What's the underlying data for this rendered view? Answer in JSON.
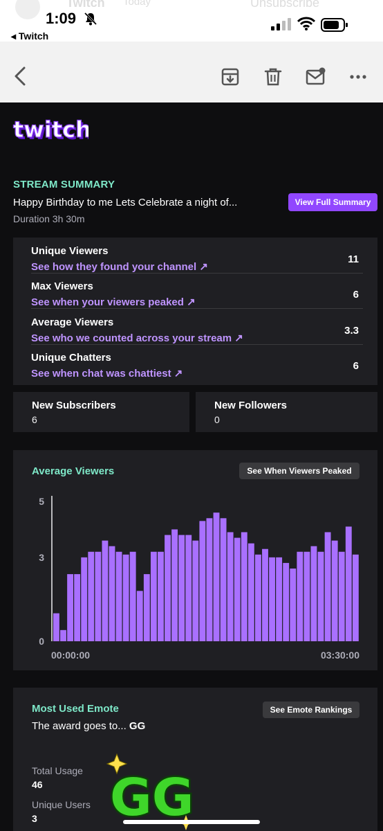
{
  "status_bar": {
    "time": "1:09",
    "back_app": "◂ Twitch",
    "ghost_sender": "Twitch",
    "ghost_time": "Today",
    "ghost_action": "Unsubscribe"
  },
  "brand": {
    "logo_text": "twitch",
    "purple": "#9147ff",
    "mint": "#7ee8c8",
    "link": "#bf94ff"
  },
  "summary": {
    "section_label": "STREAM SUMMARY",
    "title": "Happy Birthday to me Lets Celebrate a night of...",
    "duration": "Duration 3h 30m",
    "cta": "View Full Summary"
  },
  "stats": [
    {
      "label": "Unique Viewers",
      "link": "See how they found your channel ↗",
      "value": "11"
    },
    {
      "label": "Max Viewers",
      "link": "See when your viewers peaked ↗",
      "value": "6"
    },
    {
      "label": "Average Viewers",
      "link": "See who we counted across your stream ↗",
      "value": "3.3"
    },
    {
      "label": "Unique Chatters",
      "link": "See when chat was chattiest ↗",
      "value": "6"
    }
  ],
  "new_subscribers": {
    "label": "New Subscribers",
    "value": "6"
  },
  "new_followers": {
    "label": "New Followers",
    "value": "0"
  },
  "chart_card": {
    "title": "Average Viewers",
    "button": "See When Viewers Peaked"
  },
  "chart_data": {
    "type": "bar",
    "title": "Average Viewers",
    "x_start_label": "00:00:00",
    "x_end_label": "03:30:00",
    "y_ticks": [
      "0",
      "3",
      "5"
    ],
    "ylim": [
      0,
      5.2
    ],
    "grid": false,
    "color": "#a970ff",
    "values": [
      1.0,
      0.4,
      2.4,
      2.4,
      3.0,
      3.2,
      3.2,
      3.6,
      3.4,
      3.2,
      3.1,
      3.2,
      1.8,
      2.4,
      3.2,
      3.2,
      3.8,
      4.0,
      3.8,
      3.8,
      3.6,
      4.3,
      4.4,
      4.6,
      4.4,
      3.9,
      3.7,
      3.9,
      3.5,
      3.1,
      3.3,
      3.0,
      3.0,
      2.8,
      2.6,
      3.2,
      3.2,
      3.4,
      3.2,
      3.9,
      3.6,
      3.2,
      4.1,
      3.1
    ]
  },
  "emote_card": {
    "title": "Most Used Emote",
    "button": "See Emote Rankings",
    "award_prefix": "The award goes to...",
    "award_name": "GG",
    "emote_text": "GG",
    "total_usage_label": "Total Usage",
    "total_usage": "46",
    "unique_users_label": "Unique Users",
    "unique_users": "3"
  }
}
